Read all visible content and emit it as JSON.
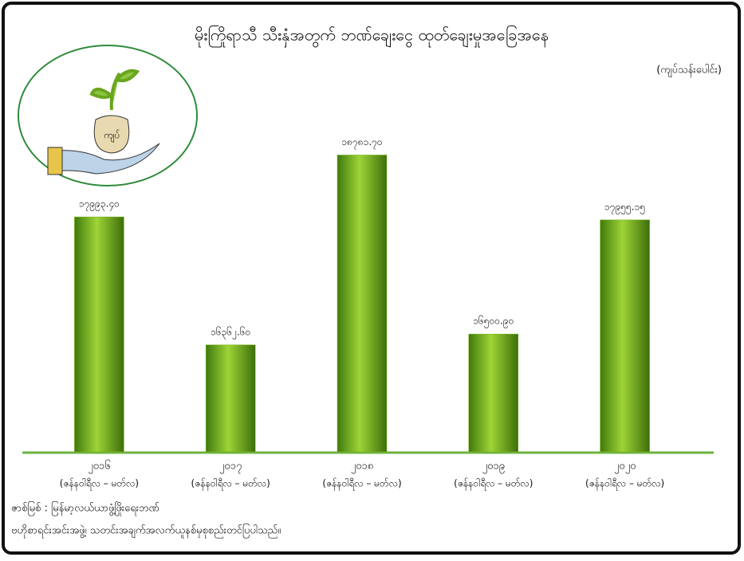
{
  "chart_data": {
    "type": "bar",
    "title": "မိုးကြိုရာသီ သီးနှံအတွက် ဘဏ်ချေးငွေ ထုတ်ချေးမှုအခြေအနေ",
    "unit_label": "(ကျပ်သန်းပေါင်း)",
    "icon_label": "ကျပ်",
    "categories": [
      "၂၀၁၆",
      "၂၀၁၇",
      "၂၀၁၈",
      "၂၀၁၉",
      "၂၀၂၀"
    ],
    "period_labels": [
      "(ဇန်နဝါရီလ – မတ်လ)",
      "(ဇန်နဝါရီလ – မတ်လ)",
      "(ဇန်နဝါရီလ – မတ်လ)",
      "(ဇန်နဝါရီလ – မတ်လ)",
      "(ဇန်နဝါရီလ – မတ်လ)"
    ],
    "values": [
      17993.4,
      16362.6,
      18781.7,
      16500.9,
      17955.15
    ],
    "value_labels": [
      "၁၇၉၉၃.၄၀",
      "၁၆၃၆၂.၆၀",
      "၁၈၇၈၁.၇၀",
      "၁၆၅၀၀.၉၀",
      "၁၇၉၅၅.၁၅"
    ],
    "color": "#7cb518",
    "ylim": [
      15000,
      19000
    ],
    "source": [
      "ဇာစ်မြစ် : မြန်မာ့လယ်ယာဖွံ့ဖြိုးရေးဘဏ်",
      "ဗဟိုစာရင်းအင်းအဖွဲ့၊ သတင်းအချက်အလက်ယူနစ်မှစုစည်းတင်ပြပါသည်။"
    ]
  }
}
